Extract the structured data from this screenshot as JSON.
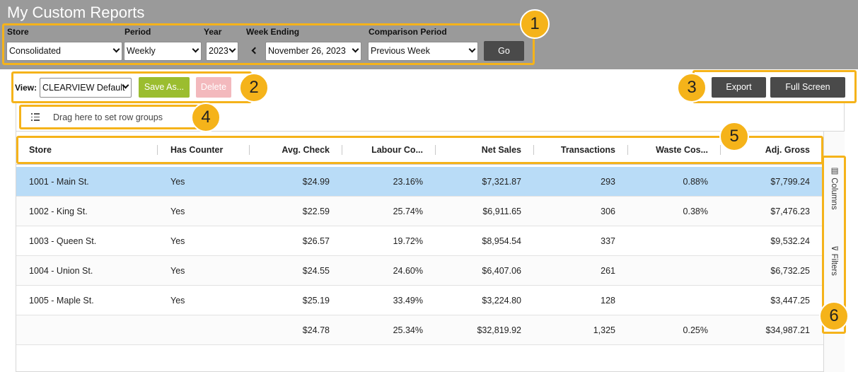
{
  "app": {
    "title": "My Custom Reports"
  },
  "filters": {
    "store": {
      "label": "Store",
      "value": "Consolidated"
    },
    "period": {
      "label": "Period",
      "value": "Weekly"
    },
    "year": {
      "label": "Year",
      "value": "2023"
    },
    "week_ending": {
      "label": "Week Ending",
      "value": "November 26, 2023"
    },
    "comparison": {
      "label": "Comparison Period",
      "value": "Previous Week"
    },
    "go_label": "Go"
  },
  "toolbar": {
    "view_label": "View:",
    "view_value": "CLEARVIEW Default",
    "save_as_label": "Save As...",
    "delete_label": "Delete",
    "export_label": "Export",
    "fullscreen_label": "Full Screen"
  },
  "grid": {
    "group_placeholder": "Drag here to set row groups",
    "columns": [
      "Store",
      "Has Counter",
      "Avg. Check",
      "Labour Co...",
      "Net Sales",
      "Transactions",
      "Waste Cos...",
      "Adj. Gross"
    ],
    "rows": [
      [
        "1001 - Main St.",
        "Yes",
        "$24.99",
        "23.16%",
        "$7,321.87",
        "293",
        "0.88%",
        "$7,799.24"
      ],
      [
        "1002 - King St.",
        "Yes",
        "$22.59",
        "25.74%",
        "$6,911.65",
        "306",
        "0.38%",
        "$7,476.23"
      ],
      [
        "1003 - Queen St.",
        "Yes",
        "$26.57",
        "19.72%",
        "$8,954.54",
        "337",
        "",
        "$9,532.24"
      ],
      [
        "1004 - Union St.",
        "Yes",
        "$24.55",
        "24.60%",
        "$6,407.06",
        "261",
        "",
        "$6,732.25"
      ],
      [
        "1005 - Maple St.",
        "Yes",
        "$25.19",
        "33.49%",
        "$3,224.80",
        "128",
        "",
        "$3,447.25"
      ]
    ],
    "totals": [
      "",
      "",
      "$24.78",
      "25.34%",
      "$32,819.92",
      "1,325",
      "0.25%",
      "$34,987.21"
    ],
    "side_tabs": {
      "columns": "Columns",
      "filters": "Filters"
    }
  },
  "callouts": [
    "1",
    "2",
    "3",
    "4",
    "5",
    "6"
  ],
  "colors": {
    "accent": "#f5b31a",
    "selected_row": "#b9dcf7",
    "save_green": "#9bbd2f",
    "delete_pink": "#f3b9bd",
    "dark_button": "#4a4a4a",
    "header_gray": "#9a9a9a"
  }
}
